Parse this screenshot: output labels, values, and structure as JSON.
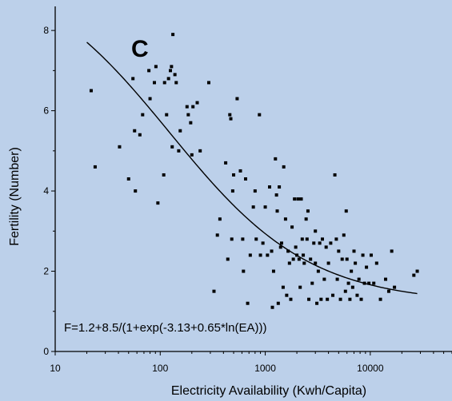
{
  "chart_data": {
    "type": "scatter",
    "panel_label": "C",
    "xlabel": "Electricity Availability (Kwh/Capita)",
    "ylabel": "Fertility (Number)",
    "x_scale": "log",
    "xlim": [
      10,
      60000
    ],
    "ylim": [
      0,
      8.6
    ],
    "x_ticks": [
      10,
      100,
      1000,
      10000
    ],
    "x_tick_labels": [
      "10",
      "100",
      "1000",
      "10000"
    ],
    "y_ticks": [
      0,
      2,
      4,
      6,
      8
    ],
    "y_tick_labels": [
      "0",
      "2",
      "4",
      "6",
      "8"
    ],
    "equation": "F=1.2+8.5/(1+exp(-3.13+0.65*ln(EA)))",
    "grid": false,
    "colors": {
      "background": "#bcd0ea",
      "points": "#000000",
      "curve": "#000000"
    },
    "fit_curve": {
      "x_start": 20,
      "x_end": 28000
    },
    "points": [
      [
        22,
        6.5
      ],
      [
        24,
        4.6
      ],
      [
        41,
        5.1
      ],
      [
        50,
        4.3
      ],
      [
        55,
        6.8
      ],
      [
        57,
        5.5
      ],
      [
        58,
        4.0
      ],
      [
        64,
        5.4
      ],
      [
        68,
        5.9
      ],
      [
        78,
        7.0
      ],
      [
        80,
        6.3
      ],
      [
        88,
        6.7
      ],
      [
        91,
        7.1
      ],
      [
        95,
        3.7
      ],
      [
        108,
        4.4
      ],
      [
        110,
        6.7
      ],
      [
        115,
        5.9
      ],
      [
        120,
        6.8
      ],
      [
        125,
        7.0
      ],
      [
        128,
        7.1
      ],
      [
        132,
        7.9
      ],
      [
        138,
        6.9
      ],
      [
        142,
        6.7
      ],
      [
        130,
        5.1
      ],
      [
        150,
        5.0
      ],
      [
        155,
        5.5
      ],
      [
        185,
        5.9
      ],
      [
        195,
        5.7
      ],
      [
        200,
        4.9
      ],
      [
        205,
        6.1
      ],
      [
        225,
        6.2
      ],
      [
        240,
        5.0
      ],
      [
        290,
        6.7
      ],
      [
        325,
        1.5
      ],
      [
        350,
        2.9
      ],
      [
        370,
        3.3
      ],
      [
        420,
        4.7
      ],
      [
        440,
        2.3
      ],
      [
        460,
        5.9
      ],
      [
        470,
        5.8
      ],
      [
        480,
        2.8
      ],
      [
        490,
        4.0
      ],
      [
        500,
        4.4
      ],
      [
        540,
        6.3
      ],
      [
        580,
        4.5
      ],
      [
        610,
        2.8
      ],
      [
        620,
        2.0
      ],
      [
        650,
        4.3
      ],
      [
        680,
        1.2
      ],
      [
        720,
        2.4
      ],
      [
        770,
        3.6
      ],
      [
        800,
        4.0
      ],
      [
        820,
        2.8
      ],
      [
        880,
        5.9
      ],
      [
        900,
        2.4
      ],
      [
        950,
        2.7
      ],
      [
        1000,
        3.6
      ],
      [
        1050,
        2.4
      ],
      [
        1100,
        4.1
      ],
      [
        1150,
        2.5
      ],
      [
        1170,
        1.1
      ],
      [
        1200,
        2.0
      ],
      [
        1250,
        4.8
      ],
      [
        1280,
        3.9
      ],
      [
        1300,
        3.5
      ],
      [
        1330,
        1.2
      ],
      [
        1360,
        4.1
      ],
      [
        1400,
        2.6
      ],
      [
        1430,
        2.7
      ],
      [
        1480,
        1.6
      ],
      [
        1500,
        4.6
      ],
      [
        1560,
        3.3
      ],
      [
        1600,
        1.4
      ],
      [
        1650,
        2.5
      ],
      [
        1700,
        2.2
      ],
      [
        1750,
        1.3
      ],
      [
        1800,
        3.1
      ],
      [
        1850,
        2.3
      ],
      [
        1900,
        3.8
      ],
      [
        1950,
        2.6
      ],
      [
        2000,
        2.4
      ],
      [
        2050,
        3.8
      ],
      [
        2100,
        2.3
      ],
      [
        2150,
        1.6
      ],
      [
        2200,
        3.8
      ],
      [
        2250,
        2.8
      ],
      [
        2300,
        2.4
      ],
      [
        2350,
        2.2
      ],
      [
        2450,
        3.3
      ],
      [
        2500,
        2.8
      ],
      [
        2550,
        3.5
      ],
      [
        2600,
        1.3
      ],
      [
        2700,
        2.3
      ],
      [
        2800,
        1.7
      ],
      [
        2900,
        2.7
      ],
      [
        3000,
        3.0
      ],
      [
        3100,
        1.2
      ],
      [
        3200,
        2.0
      ],
      [
        3300,
        2.7
      ],
      [
        3400,
        1.3
      ],
      [
        3500,
        2.8
      ],
      [
        3650,
        1.8
      ],
      [
        3800,
        2.6
      ],
      [
        3900,
        1.3
      ],
      [
        4000,
        2.2
      ],
      [
        4200,
        2.7
      ],
      [
        4400,
        1.4
      ],
      [
        4600,
        4.4
      ],
      [
        4750,
        2.8
      ],
      [
        4850,
        1.8
      ],
      [
        5000,
        2.5
      ],
      [
        5200,
        1.3
      ],
      [
        5400,
        2.3
      ],
      [
        5600,
        2.9
      ],
      [
        5800,
        1.5
      ],
      [
        5900,
        3.5
      ],
      [
        6000,
        2.3
      ],
      [
        6200,
        1.7
      ],
      [
        6400,
        1.3
      ],
      [
        6600,
        2.0
      ],
      [
        6800,
        1.6
      ],
      [
        7000,
        2.5
      ],
      [
        7200,
        2.2
      ],
      [
        7500,
        1.4
      ],
      [
        7800,
        1.8
      ],
      [
        8200,
        1.3
      ],
      [
        8500,
        2.4
      ],
      [
        8800,
        1.7
      ],
      [
        9200,
        2.1
      ],
      [
        9700,
        1.7
      ],
      [
        10200,
        2.4
      ],
      [
        10800,
        1.7
      ],
      [
        11500,
        2.2
      ],
      [
        12500,
        1.3
      ],
      [
        14000,
        1.8
      ],
      [
        15000,
        1.5
      ],
      [
        16000,
        2.5
      ],
      [
        17000,
        1.6
      ],
      [
        26000,
        1.9
      ],
      [
        28000,
        2.0
      ],
      [
        180,
        6.1
      ],
      [
        3000,
        2.2
      ]
    ]
  }
}
